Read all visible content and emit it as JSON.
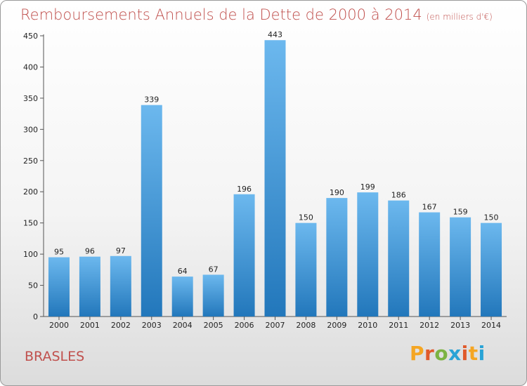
{
  "page": {
    "title": "Remboursements Annuels de la Dette de 2000 à 2014",
    "subtitle": "(en milliers d'€)",
    "town": "BRASLES",
    "logo_text": "Proxiti"
  },
  "colors": {
    "title": "#c0504d",
    "bar_light": "#6cb8ee",
    "bar_dark": "#2277bb",
    "logo": [
      "#f5a623",
      "#e05a2b",
      "#7cb342",
      "#29a3d6",
      "#e05a2b",
      "#f5a623",
      "#29a3d6"
    ]
  },
  "chart_data": {
    "type": "bar",
    "title": "Remboursements Annuels de la Dette de 2000 à 2014",
    "subtitle": "(en milliers d'€)",
    "xlabel": "",
    "ylabel": "",
    "categories": [
      "2000",
      "2001",
      "2002",
      "2003",
      "2004",
      "2005",
      "2006",
      "2007",
      "2008",
      "2009",
      "2010",
      "2011",
      "2012",
      "2013",
      "2014"
    ],
    "values": [
      95,
      96,
      97,
      339,
      64,
      67,
      196,
      443,
      150,
      190,
      199,
      186,
      167,
      159,
      150
    ],
    "ylim": [
      0,
      450
    ],
    "yticks": [
      0,
      50,
      100,
      150,
      200,
      250,
      300,
      350,
      400,
      450
    ],
    "grid": false,
    "legend": "none"
  }
}
